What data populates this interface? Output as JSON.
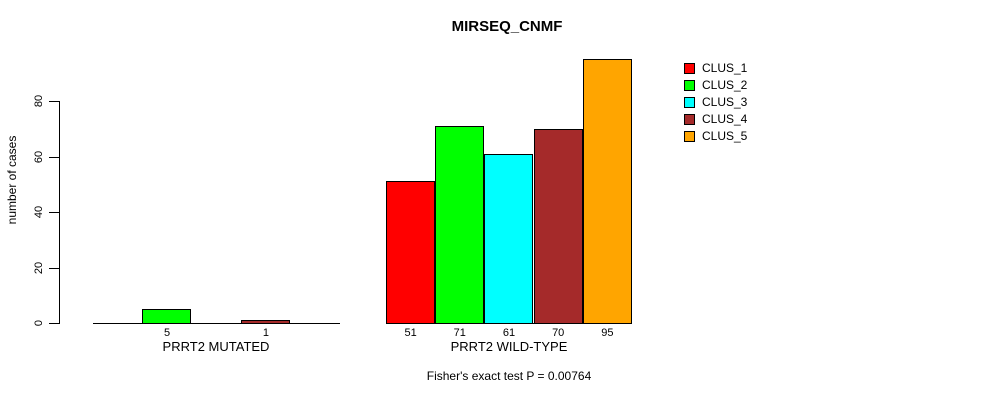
{
  "chart_data": {
    "type": "bar",
    "title": "MIRSEQ_CNMF",
    "ylabel": "number of cases",
    "xlabel": "",
    "groups": [
      "PRRT2 MUTATED",
      "PRRT2 WILD-TYPE"
    ],
    "series": [
      {
        "name": "CLUS_1",
        "color": "#FF0000",
        "values": [
          0,
          51
        ]
      },
      {
        "name": "CLUS_2",
        "color": "#00FF00",
        "values": [
          5,
          71
        ]
      },
      {
        "name": "CLUS_3",
        "color": "#00FFFF",
        "values": [
          0,
          61
        ]
      },
      {
        "name": "CLUS_4",
        "color": "#A52A2A",
        "values": [
          1,
          70
        ]
      },
      {
        "name": "CLUS_5",
        "color": "#FFA500",
        "values": [
          0,
          95
        ]
      }
    ],
    "bar_value_labels": {
      "shown": [
        [
          "",
          "5",
          "",
          "1",
          ""
        ],
        [
          "51",
          "71",
          "61",
          "70",
          "95"
        ]
      ],
      "rule": "value shown under each bar only when value > 0"
    },
    "yticks": [
      0,
      20,
      40,
      60,
      80
    ],
    "ylim": [
      0,
      95
    ],
    "grid": false,
    "legend": {
      "position": "right",
      "entries": [
        "CLUS_1",
        "CLUS_2",
        "CLUS_3",
        "CLUS_4",
        "CLUS_5"
      ]
    },
    "annotation": "Fisher's exact test P = 0.00764"
  }
}
